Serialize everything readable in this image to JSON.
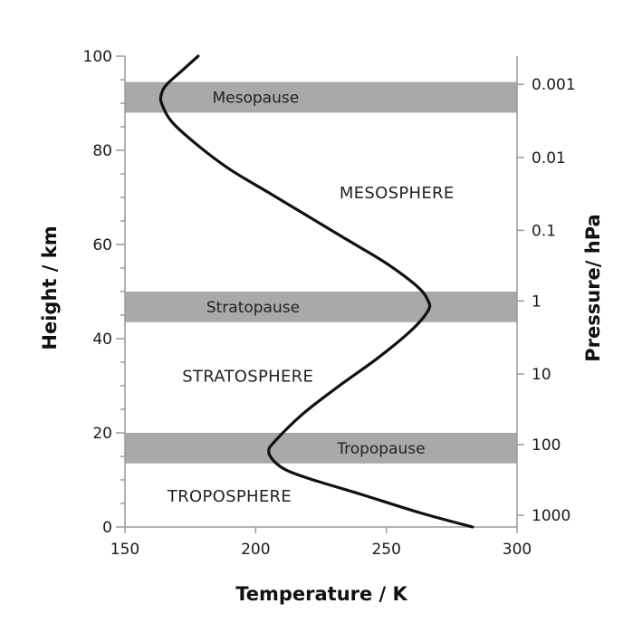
{
  "chart_data": {
    "type": "line",
    "xlabel": "Temperature / K",
    "ylabel": "Height / km",
    "y2label": "Pressure/ hPa",
    "xlim": [
      150,
      300
    ],
    "ylim": [
      0,
      100
    ],
    "x_ticks": [
      "150",
      "200",
      "250",
      "300"
    ],
    "y_ticks": [
      "0",
      "20",
      "40",
      "60",
      "80",
      "100"
    ],
    "pressure_ticks": [
      {
        "label": "1000",
        "height": 2.5
      },
      {
        "label": "100",
        "height": 17.5
      },
      {
        "label": "10",
        "height": 32.5
      },
      {
        "label": "1",
        "height": 48
      },
      {
        "label": "0.1",
        "height": 63
      },
      {
        "label": "0.01",
        "height": 78.5
      },
      {
        "label": "0.001",
        "height": 94
      }
    ],
    "bands": [
      {
        "label": "Mesopause",
        "from": 88,
        "to": 94.5,
        "label_temp": 200
      },
      {
        "label": "Stratopause",
        "from": 43.5,
        "to": 50,
        "label_temp": 199
      },
      {
        "label": "Tropopause",
        "from": 13.5,
        "to": 20,
        "label_temp": 248
      }
    ],
    "regions": [
      {
        "label": "MESOSPHERE",
        "temp": 254,
        "height": 71
      },
      {
        "label": "STRATOSPHERE",
        "temp": 197,
        "height": 32
      },
      {
        "label": "TROPOSPHERE",
        "temp": 190,
        "height": 6.5
      }
    ],
    "series": [
      {
        "x": [
          283,
          263,
          240,
          222,
          212,
          207,
          205,
          207,
          218,
          232,
          247,
          260,
          266,
          266,
          262,
          250,
          235,
          220,
          205,
          190,
          178,
          168,
          164,
          164,
          166,
          172,
          178
        ],
        "y": [
          0,
          3,
          7,
          10,
          12,
          14,
          16,
          18,
          24,
          30,
          36,
          42,
          46,
          48,
          51,
          56,
          61,
          66,
          71,
          76,
          81,
          86,
          90,
          92,
          94,
          97,
          100
        ]
      }
    ]
  }
}
